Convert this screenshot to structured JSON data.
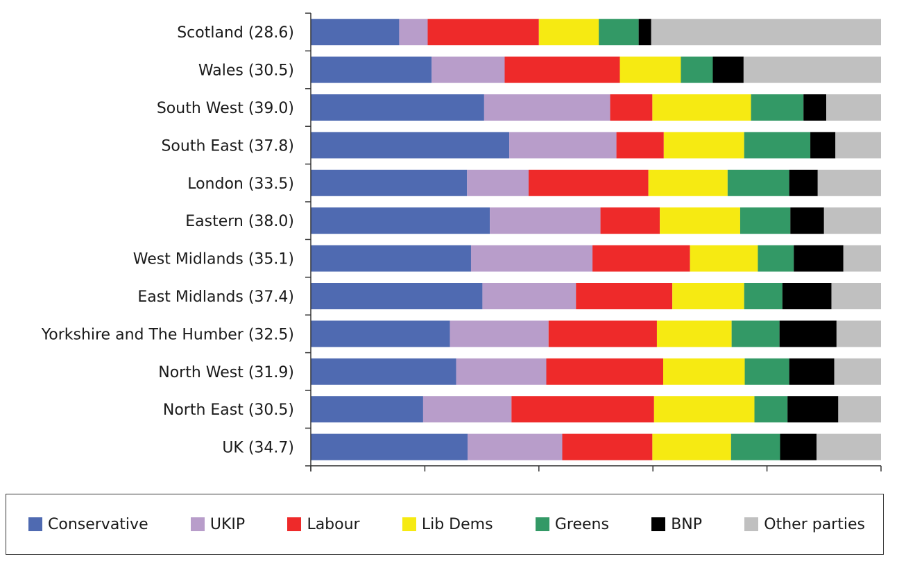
{
  "chart_data": {
    "type": "bar",
    "orientation": "horizontal",
    "stacked": "percent",
    "categories": [
      "Scotland (28.6)",
      "Wales (30.5)",
      "South West (39.0)",
      "South East (37.8)",
      "London (33.5)",
      "Eastern (38.0)",
      "West Midlands (35.1)",
      "East Midlands (37.4)",
      "Yorkshire and The Humber (32.5)",
      "North West (31.9)",
      "North East (30.5)",
      "UK (34.7)"
    ],
    "series": [
      {
        "name": "Conservative",
        "color": "#4f6ab1",
        "values": [
          15.5,
          21.2,
          30.4,
          34.8,
          27.4,
          31.4,
          28.1,
          30.1,
          24.4,
          25.5,
          19.7,
          27.5
        ]
      },
      {
        "name": "UKIP",
        "color": "#b89dca",
        "values": [
          5.0,
          12.8,
          22.1,
          18.8,
          10.8,
          19.4,
          21.3,
          16.4,
          17.3,
          15.8,
          15.5,
          16.6
        ]
      },
      {
        "name": "Labour",
        "color": "#ee2a2a",
        "values": [
          19.5,
          20.2,
          7.4,
          8.3,
          21.0,
          10.4,
          17.1,
          16.9,
          19.0,
          20.5,
          25.0,
          15.8
        ]
      },
      {
        "name": "Lib Dems",
        "color": "#f6ea12",
        "values": [
          10.5,
          10.7,
          17.3,
          14.1,
          13.9,
          14.1,
          11.9,
          12.6,
          13.1,
          14.3,
          17.6,
          13.8
        ]
      },
      {
        "name": "Greens",
        "color": "#339966",
        "values": [
          7.0,
          5.6,
          9.2,
          11.6,
          10.8,
          8.8,
          6.3,
          6.7,
          8.4,
          7.8,
          5.8,
          8.6
        ]
      },
      {
        "name": "BNP",
        "color": "#000000",
        "values": [
          2.2,
          5.4,
          4.0,
          4.4,
          5.0,
          5.9,
          8.7,
          8.6,
          10.0,
          7.9,
          8.9,
          6.4
        ]
      },
      {
        "name": "Other parties",
        "color": "#c0c0c0",
        "values": [
          40.3,
          24.1,
          9.6,
          8.0,
          11.1,
          10.0,
          6.6,
          8.7,
          7.8,
          8.2,
          7.5,
          11.3
        ]
      }
    ],
    "xlim": [
      0,
      100
    ],
    "xticks": [
      "0%",
      "20%",
      "40%",
      "60%",
      "80%",
      "100%"
    ],
    "grid": false,
    "legend_position": "bottom"
  }
}
